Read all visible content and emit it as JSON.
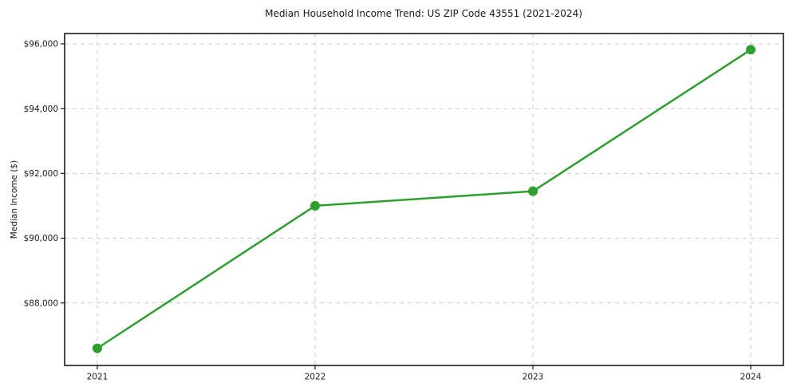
{
  "title": "Median Household Income Trend: US ZIP Code 43551 (2021-2024)",
  "colors": {
    "line": "#2ca02c",
    "marker": "#2ca02c",
    "grid": "#c9c9c9",
    "spine": "#1a1a1a",
    "text": "#1a1a1a",
    "background": "#ffffff"
  },
  "chart_data": {
    "type": "line",
    "title": "Median Household Income Trend: US ZIP Code 43551 (2021-2024)",
    "series_name": "Median Household Income",
    "x": [
      2021,
      2022,
      2023,
      2024
    ],
    "values": [
      86600,
      91000,
      91450,
      95820
    ],
    "xtick_labels": [
      "2021",
      "2022",
      "2023",
      "2024"
    ],
    "yticks": [
      88000,
      90000,
      92000,
      94000,
      96000
    ],
    "ytick_labels": [
      "$88,000",
      "$90,000",
      "$92,000",
      "$94,000",
      "$96,000"
    ],
    "xlabel": "",
    "ylabel": "Median Income ($)",
    "xlim": [
      2020.85,
      2024.15
    ],
    "ylim": [
      86070,
      96320
    ],
    "grid": true,
    "grid_style": "dashed",
    "legend": "none",
    "marker": "circle"
  }
}
